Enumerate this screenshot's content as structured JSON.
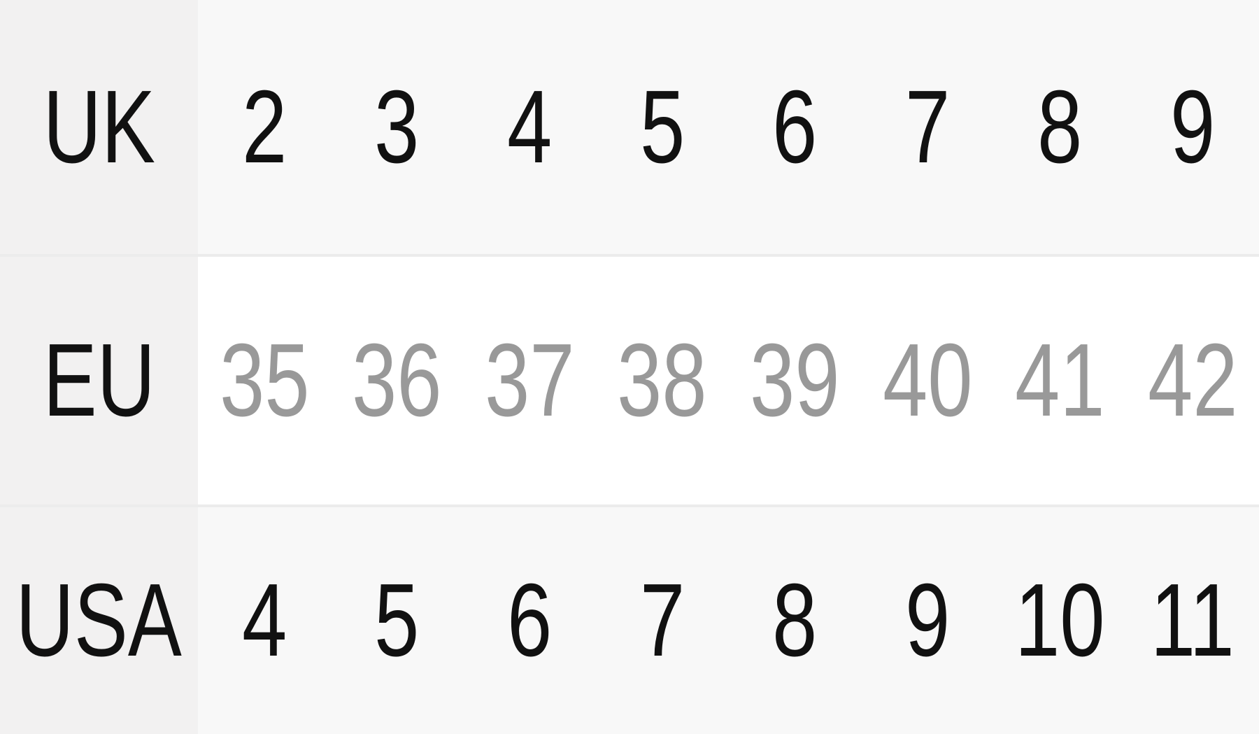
{
  "size_chart": {
    "rows": [
      {
        "label": "UK",
        "values": [
          "2",
          "3",
          "4",
          "5",
          "6",
          "7",
          "8",
          "9"
        ]
      },
      {
        "label": "EU",
        "values": [
          "35",
          "36",
          "37",
          "38",
          "39",
          "40",
          "41",
          "42"
        ]
      },
      {
        "label": "USA",
        "values": [
          "4",
          "5",
          "6",
          "7",
          "8",
          "9",
          "10",
          "11"
        ]
      }
    ],
    "colors": {
      "header_bg": "#f2f1f1",
      "stripe_bg": "#f8f8f8",
      "eu_text": "#999999",
      "text": "#111111"
    }
  }
}
